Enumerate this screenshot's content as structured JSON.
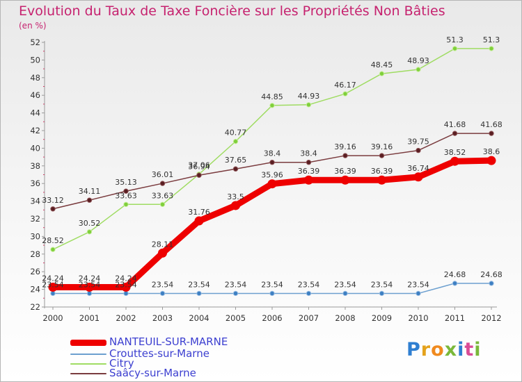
{
  "header": {
    "title": "Evolution du Taux de Taxe Foncière sur les Propriétés Non Bâties",
    "unit": "(en %)"
  },
  "brand": {
    "name": "Proxiti",
    "letters": [
      "P",
      "r",
      "o",
      "x",
      "i",
      "t",
      "i"
    ],
    "colors": [
      "#2f7fd1",
      "#e4a21b",
      "#f08a1e",
      "#7ab83a",
      "#2f7fd1",
      "#d94c96",
      "#7ab83a"
    ]
  },
  "chart_data": {
    "type": "line",
    "title": "Evolution du Taux de Taxe Foncière sur les Propriétés Non Bâties",
    "ylabel": "(en %)",
    "xlabel": "",
    "ylim": [
      22,
      52
    ],
    "yticks": [
      22,
      24,
      26,
      28,
      30,
      32,
      34,
      36,
      38,
      40,
      42,
      44,
      46,
      48,
      50,
      52
    ],
    "grid": false,
    "legend_position": "bottom-left",
    "categories": [
      "2000",
      "2001",
      "2002",
      "2003",
      "2004",
      "2005",
      "2006",
      "2007",
      "2008",
      "2009",
      "2010",
      "2011",
      "2012"
    ],
    "series": [
      {
        "name": "NANTEUIL-SUR-MARNE",
        "color": "#ee0000",
        "values": [
          24.24,
          24.24,
          24.24,
          28.11,
          31.76,
          33.5,
          35.96,
          36.39,
          36.39,
          36.39,
          36.74,
          38.52,
          38.6
        ],
        "labels": [
          "24.24",
          "24.24",
          "24.24",
          "28.11",
          "31.76",
          "33.5",
          "35.96",
          "36.39",
          "36.39",
          "36.39",
          "36.74",
          "38.52",
          "38.6"
        ]
      },
      {
        "name": "Crouttes-sur-Marne",
        "color": "#6c9fcf",
        "values": [
          23.54,
          23.54,
          23.54,
          23.54,
          23.54,
          23.54,
          23.54,
          23.54,
          23.54,
          23.54,
          23.54,
          24.68,
          24.68
        ],
        "labels": [
          "23.54",
          "23.54",
          "23.54",
          "23.54",
          "23.54",
          "23.54",
          "23.54",
          "23.54",
          "23.54",
          "23.54",
          "23.54",
          "24.68",
          "24.68"
        ]
      },
      {
        "name": "Citry",
        "color": "#9fdc62",
        "values": [
          28.52,
          30.52,
          33.63,
          33.63,
          37.06,
          40.77,
          44.85,
          44.93,
          46.17,
          48.45,
          48.93,
          51.3,
          51.3
        ],
        "labels": [
          "28.52",
          "30.52",
          "33.63",
          "33.63",
          "37.06",
          "40.77",
          "44.85",
          "44.93",
          "46.17",
          "48.45",
          "48.93",
          "51.3",
          "51.3"
        ]
      },
      {
        "name": "Saâcy-sur-Marne",
        "color": "#7a3b3e",
        "values": [
          33.12,
          34.11,
          35.13,
          36.01,
          36.94,
          37.65,
          38.4,
          38.4,
          39.16,
          39.16,
          39.75,
          41.68,
          41.68
        ],
        "labels": [
          "33.12",
          "34.11",
          "35.13",
          "36.01",
          "36.94",
          "37.65",
          "38.4",
          "38.4",
          "39.16",
          "39.16",
          "39.75",
          "41.68",
          "41.68"
        ]
      }
    ]
  }
}
